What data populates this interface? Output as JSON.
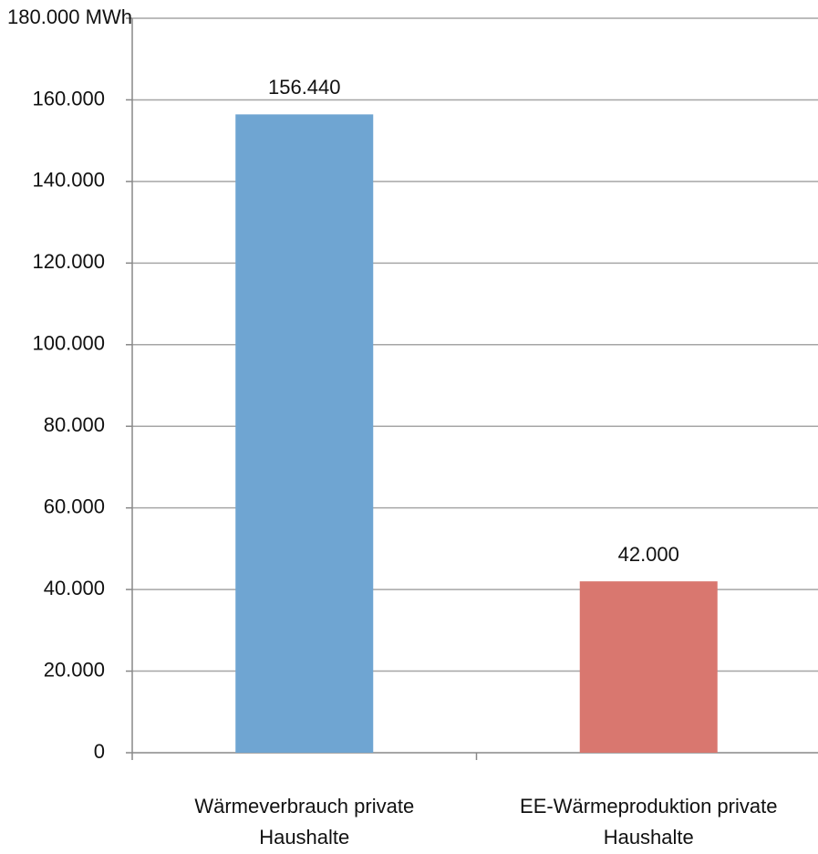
{
  "chart_data": {
    "type": "bar",
    "categories": [
      "Wärmeverbrauch private Haushalte",
      "EE-Wärmeproduktion private Haushalte"
    ],
    "values": [
      156440,
      42000
    ],
    "value_labels": [
      "156.440",
      "42.000"
    ],
    "colors": [
      "#6fa5d2",
      "#d9776f"
    ],
    "ylim": [
      0,
      180000
    ],
    "yticks": [
      0,
      {
        "value": 20000,
        "label": "20.000"
      },
      {
        "value": 40000,
        "label": "40.000"
      },
      {
        "value": 60000,
        "label": "60.000"
      },
      {
        "value": 80000,
        "label": "80.000"
      },
      {
        "value": 100000,
        "label": "100.000"
      },
      {
        "value": 120000,
        "label": "120.000"
      },
      {
        "value": 140000,
        "label": "140.000"
      },
      {
        "value": 160000,
        "label": "160.000"
      },
      {
        "value": 180000,
        "label": "180.000 MWh"
      }
    ],
    "grid": true
  }
}
